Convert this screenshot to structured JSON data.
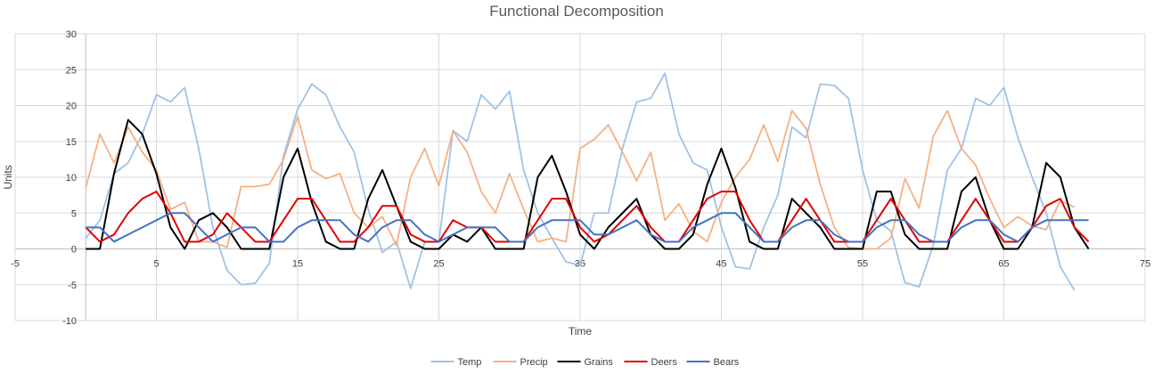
{
  "chart_data": {
    "type": "line",
    "title": "Functional Decomposition",
    "xlabel": "Time",
    "ylabel": "Units",
    "xlim": [
      -5,
      75
    ],
    "ylim": [
      -10,
      30
    ],
    "x_ticks": [
      -5,
      5,
      15,
      25,
      35,
      45,
      55,
      65,
      75
    ],
    "y_ticks": [
      -10,
      -5,
      0,
      5,
      10,
      15,
      20,
      25,
      30
    ],
    "grid": true,
    "legend_position": "bottom",
    "series": [
      {
        "name": "Temp",
        "color": "#9dc3e6",
        "values": [
          1.5,
          4,
          10.5,
          12,
          16,
          21.5,
          20.5,
          22.5,
          14,
          3,
          -3,
          -5,
          -4.8,
          -2,
          13,
          19.5,
          23,
          21.5,
          17,
          13.5,
          5.5,
          -0.5,
          1,
          -5.5,
          1,
          1,
          16.5,
          15,
          21.5,
          19.5,
          22,
          11,
          5,
          1.5,
          -1.8,
          -2.3,
          5,
          5,
          14,
          20.5,
          21,
          24.5,
          16,
          12,
          11,
          3,
          -2.5,
          -2.8,
          3,
          7.5,
          17,
          15.5,
          23,
          22.8,
          21,
          11,
          4,
          2.5,
          -4.7,
          -5.3,
          0.5,
          11,
          14,
          21,
          20,
          22.5,
          15.5,
          10,
          5,
          -2.5,
          -5.8
        ]
      },
      {
        "name": "Precip",
        "color": "#f4b183",
        "values": [
          8.5,
          16,
          12,
          17,
          13.5,
          11,
          5.5,
          6.5,
          1,
          1,
          0.2,
          8.7,
          8.7,
          9,
          12.5,
          18.5,
          11,
          9.8,
          10.5,
          5,
          3,
          4.5,
          0.5,
          10,
          14,
          8.8,
          16.5,
          13.5,
          8,
          5,
          10.5,
          5.5,
          1,
          1.5,
          1,
          14,
          15.3,
          17.3,
          13.5,
          9.5,
          13.5,
          4,
          6.3,
          2.5,
          1,
          6.5,
          10,
          12.5,
          17.3,
          12.2,
          19.3,
          16.8,
          9,
          3,
          0.2,
          0,
          0,
          1.5,
          9.8,
          5.7,
          15.7,
          19.3,
          14,
          11.7,
          7,
          3,
          4.5,
          3.2,
          2.7,
          6.7,
          5.8
        ]
      },
      {
        "name": "Grains",
        "color": "#000000",
        "values": [
          0,
          0,
          10.5,
          18,
          16,
          10.5,
          3,
          0,
          4,
          5,
          3,
          0,
          0,
          0,
          10,
          14,
          6.5,
          1,
          0,
          0,
          7,
          11,
          6,
          1,
          0,
          0,
          2,
          1,
          3,
          0,
          0,
          0,
          10,
          13,
          8,
          2,
          0,
          3,
          5,
          7,
          2,
          0,
          0,
          2,
          9,
          14,
          8.5,
          1,
          0,
          0,
          7,
          5,
          3,
          0,
          0,
          0,
          8,
          8,
          2,
          0,
          0,
          0,
          8,
          10,
          4,
          0,
          0,
          3,
          12,
          10,
          3,
          0
        ]
      },
      {
        "name": "Deers",
        "color": "#e00000",
        "values": [
          3,
          1,
          2,
          5,
          7,
          8,
          5,
          1,
          1,
          2,
          5,
          3,
          1,
          1,
          4,
          7,
          7,
          4,
          1,
          1,
          3,
          6,
          6,
          2,
          1,
          1,
          4,
          3,
          3,
          1,
          1,
          1,
          4,
          7,
          7,
          3,
          1,
          2,
          4,
          6,
          3,
          1,
          1,
          4,
          7,
          8,
          8,
          4,
          1,
          1,
          4,
          7,
          4,
          1,
          1,
          1,
          4,
          7,
          4,
          1,
          1,
          1,
          4,
          7,
          4,
          1,
          1,
          3,
          6,
          7,
          3,
          1
        ]
      },
      {
        "name": "Bears",
        "color": "#4472c4",
        "values": [
          3,
          3,
          1,
          2,
          3,
          4,
          5,
          5,
          3,
          1,
          2,
          3,
          3,
          1,
          1,
          3,
          4,
          4,
          4,
          2,
          1,
          3,
          4,
          4,
          2,
          1,
          2,
          3,
          3,
          3,
          1,
          1,
          3,
          4,
          4,
          4,
          2,
          2,
          3,
          4,
          2,
          1,
          1,
          3,
          4,
          5,
          5,
          3,
          1,
          1,
          3,
          4,
          4,
          2,
          1,
          1,
          3,
          4,
          4,
          2,
          1,
          1,
          3,
          4,
          4,
          2,
          1,
          3,
          4,
          4,
          4,
          4
        ]
      }
    ]
  }
}
